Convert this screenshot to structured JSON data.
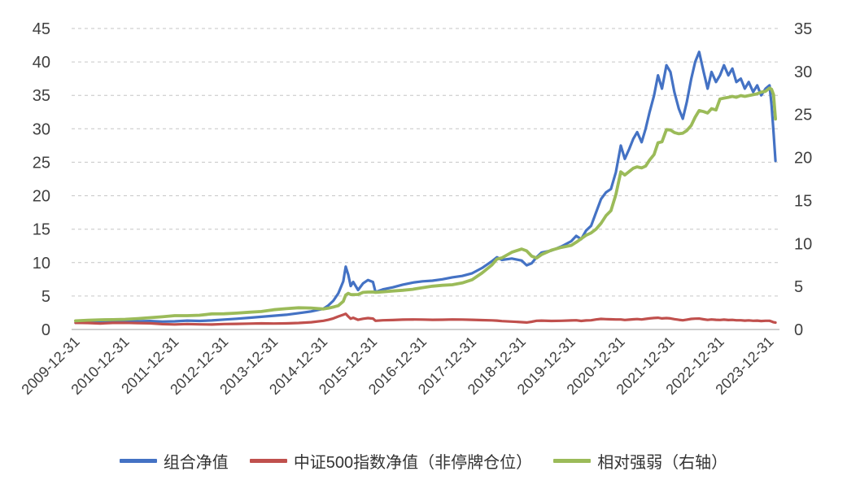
{
  "chart_data": {
    "type": "line",
    "title": "",
    "grid": "horizontal-dashed",
    "legend_position": "bottom",
    "x_range": [
      2009.92,
      2024.2
    ],
    "left_axis": {
      "min": 0,
      "max": 45,
      "step": 5
    },
    "right_axis": {
      "min": 0,
      "max": 35,
      "step": 5
    },
    "x_tick_labels": [
      "2009-12-31",
      "2010-12-31",
      "2011-12-31",
      "2012-12-31",
      "2013-12-31",
      "2014-12-31",
      "2015-12-31",
      "2016-12-31",
      "2017-12-31",
      "2018-12-31",
      "2019-12-31",
      "2020-12-31",
      "2021-12-31",
      "2022-12-31",
      "2023-12-31"
    ],
    "x_tick_positions": [
      2010,
      2011,
      2012,
      2013,
      2014,
      2015,
      2016,
      2017,
      2018,
      2019,
      2020,
      2021,
      2022,
      2023,
      2024
    ],
    "x": [
      2010.0,
      2010.25,
      2010.5,
      2010.75,
      2011.0,
      2011.25,
      2011.5,
      2011.75,
      2012.0,
      2012.25,
      2012.5,
      2012.75,
      2013.0,
      2013.25,
      2013.5,
      2013.75,
      2014.0,
      2014.25,
      2014.5,
      2014.75,
      2015.0,
      2015.1,
      2015.2,
      2015.3,
      2015.4,
      2015.45,
      2015.5,
      2015.55,
      2015.6,
      2015.7,
      2015.8,
      2015.9,
      2016.0,
      2016.05,
      2016.2,
      2016.4,
      2016.6,
      2016.8,
      2017.0,
      2017.2,
      2017.4,
      2017.6,
      2017.8,
      2018.0,
      2018.2,
      2018.4,
      2018.5,
      2018.6,
      2018.8,
      2019.0,
      2019.1,
      2019.2,
      2019.3,
      2019.4,
      2019.6,
      2019.8,
      2020.0,
      2020.1,
      2020.2,
      2020.3,
      2020.4,
      2020.5,
      2020.6,
      2020.7,
      2020.8,
      2020.9,
      2021.0,
      2021.08,
      2021.17,
      2021.25,
      2021.33,
      2021.42,
      2021.5,
      2021.58,
      2021.67,
      2021.75,
      2021.83,
      2021.92,
      2022.0,
      2022.08,
      2022.17,
      2022.25,
      2022.33,
      2022.42,
      2022.5,
      2022.58,
      2022.67,
      2022.75,
      2022.83,
      2022.92,
      2023.0,
      2023.08,
      2023.17,
      2023.25,
      2023.33,
      2023.42,
      2023.5,
      2023.58,
      2023.67,
      2023.75,
      2023.83,
      2023.92,
      2024.0,
      2024.04,
      2024.08,
      2024.12
    ],
    "series": [
      {
        "id": "portfolio",
        "name": "组合净值",
        "axis": "left",
        "color": "#4472C4",
        "width": 3.2,
        "values": [
          1.0,
          1.05,
          1.02,
          1.12,
          1.18,
          1.22,
          1.26,
          1.18,
          1.22,
          1.32,
          1.28,
          1.35,
          1.48,
          1.6,
          1.75,
          1.9,
          2.05,
          2.2,
          2.45,
          2.7,
          3.1,
          3.6,
          4.3,
          5.4,
          7.2,
          9.4,
          8.2,
          6.5,
          7.1,
          5.9,
          6.9,
          7.4,
          7.1,
          5.6,
          6.0,
          6.3,
          6.7,
          7.0,
          7.2,
          7.3,
          7.5,
          7.8,
          8.0,
          8.4,
          9.2,
          10.2,
          10.8,
          10.4,
          10.6,
          10.3,
          9.6,
          9.9,
          10.8,
          11.5,
          11.8,
          12.4,
          13.2,
          14.0,
          13.5,
          14.8,
          15.5,
          17.5,
          19.5,
          20.5,
          21.0,
          23.5,
          27.5,
          25.5,
          27.0,
          28.5,
          29.5,
          28.0,
          30.0,
          32.5,
          35.0,
          38.0,
          36.0,
          39.5,
          38.5,
          35.5,
          33.0,
          31.5,
          34.0,
          37.5,
          40.0,
          41.5,
          38.5,
          36.0,
          38.5,
          37.0,
          38.0,
          39.5,
          38.0,
          39.0,
          37.0,
          37.5,
          36.0,
          37.0,
          35.5,
          36.5,
          35.0,
          36.0,
          36.5,
          33.5,
          29.5,
          25.2
        ]
      },
      {
        "id": "csi500-index",
        "name": "中证500指数净值（非停牌仓位）",
        "axis": "left",
        "color": "#C0504D",
        "width": 3.2,
        "values": [
          1.0,
          0.97,
          0.9,
          0.98,
          1.0,
          0.96,
          0.92,
          0.8,
          0.76,
          0.82,
          0.77,
          0.74,
          0.81,
          0.84,
          0.87,
          0.91,
          0.89,
          0.91,
          0.97,
          1.08,
          1.3,
          1.45,
          1.65,
          1.95,
          2.2,
          2.35,
          1.95,
          1.6,
          1.75,
          1.45,
          1.6,
          1.7,
          1.63,
          1.3,
          1.37,
          1.41,
          1.47,
          1.5,
          1.48,
          1.45,
          1.46,
          1.5,
          1.48,
          1.45,
          1.4,
          1.36,
          1.32,
          1.25,
          1.18,
          1.1,
          1.05,
          1.16,
          1.3,
          1.32,
          1.28,
          1.3,
          1.35,
          1.38,
          1.28,
          1.35,
          1.38,
          1.5,
          1.58,
          1.55,
          1.52,
          1.5,
          1.5,
          1.42,
          1.47,
          1.52,
          1.56,
          1.49,
          1.58,
          1.65,
          1.72,
          1.75,
          1.65,
          1.7,
          1.66,
          1.55,
          1.45,
          1.38,
          1.47,
          1.58,
          1.62,
          1.63,
          1.52,
          1.43,
          1.5,
          1.45,
          1.42,
          1.47,
          1.41,
          1.44,
          1.37,
          1.38,
          1.33,
          1.36,
          1.3,
          1.33,
          1.27,
          1.3,
          1.3,
          1.2,
          1.08,
          1.03
        ]
      },
      {
        "id": "relative-strength",
        "name": "相对强弱（右轴）",
        "axis": "right",
        "color": "#9BBB59",
        "width": 3.8,
        "values": [
          1.0,
          1.08,
          1.13,
          1.14,
          1.18,
          1.27,
          1.37,
          1.48,
          1.61,
          1.61,
          1.66,
          1.82,
          1.83,
          1.9,
          2.01,
          2.09,
          2.3,
          2.42,
          2.53,
          2.5,
          2.38,
          2.48,
          2.61,
          2.77,
          3.27,
          4.0,
          4.21,
          4.06,
          4.06,
          4.07,
          4.31,
          4.35,
          4.36,
          4.31,
          4.38,
          4.47,
          4.56,
          4.67,
          4.86,
          5.03,
          5.14,
          5.2,
          5.41,
          5.79,
          6.57,
          7.5,
          8.18,
          8.32,
          8.98,
          9.36,
          9.14,
          8.53,
          8.31,
          8.71,
          9.22,
          9.54,
          9.78,
          10.14,
          10.55,
          10.96,
          11.23,
          11.67,
          12.34,
          13.23,
          13.82,
          15.67,
          18.33,
          17.96,
          18.37,
          18.75,
          18.91,
          18.79,
          18.99,
          19.7,
          20.35,
          21.71,
          21.82,
          23.24,
          23.19,
          22.9,
          22.76,
          22.83,
          23.13,
          23.73,
          24.69,
          25.46,
          25.33,
          25.17,
          25.67,
          25.52,
          26.8,
          26.9,
          27.0,
          27.1,
          27.0,
          27.2,
          27.1,
          27.2,
          27.3,
          27.4,
          27.6,
          27.7,
          28.07,
          27.92,
          27.31,
          24.47
        ]
      }
    ]
  }
}
